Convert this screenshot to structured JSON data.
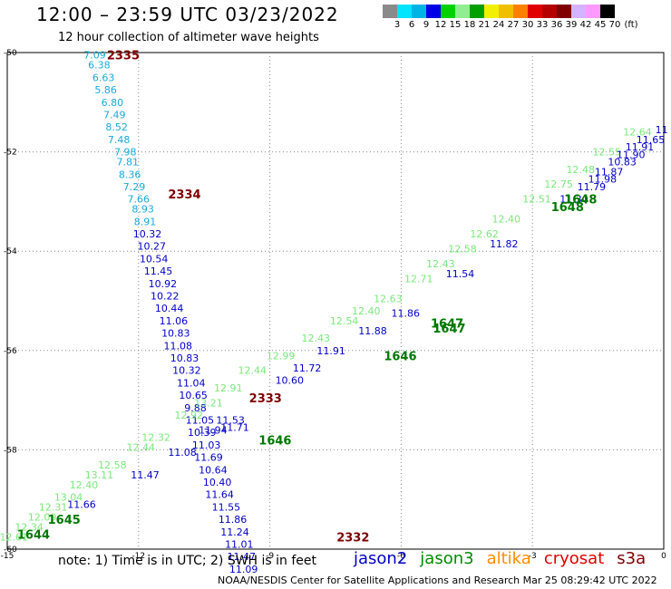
{
  "header": {
    "title": "12:00 – 23:59 UTC 03/23/2022",
    "subtitle": "12 hour collection of altimeter wave heights"
  },
  "legend": {
    "unit": "(ft)",
    "colors": [
      "#8a8a8a",
      "#00e5ff",
      "#00b4e6",
      "#0000e6",
      "#00d200",
      "#90ee90",
      "#00a000",
      "#f0f000",
      "#f0c000",
      "#ff8000",
      "#e00000",
      "#b40000",
      "#800000",
      "#d6b3ff",
      "#ff99ff",
      "#000000"
    ],
    "ticks": [
      "3",
      "6",
      "9",
      "12",
      "15",
      "18",
      "21",
      "24",
      "27",
      "30",
      "33",
      "36",
      "39",
      "42",
      "45",
      "70"
    ]
  },
  "map": {
    "lon_range": [
      -15,
      0
    ],
    "lat_range": [
      -60,
      -50
    ],
    "x_ticks": [
      "-15",
      "-12",
      "-9",
      "-6",
      "-3",
      "0"
    ],
    "y_ticks": [
      "-50",
      "-52",
      "-54",
      "-56",
      "-58",
      "-60"
    ]
  },
  "chart_data": {
    "type": "scatter",
    "xlabel": "",
    "ylabel": "",
    "xlim": [
      -15,
      0
    ],
    "ylim": [
      -60,
      -50
    ],
    "grid": true,
    "times": [
      {
        "label": "2335",
        "x": -12.35,
        "y": -50.05,
        "color": "#800000"
      },
      {
        "label": "2334",
        "x": -10.95,
        "y": -52.85,
        "color": "#800000"
      },
      {
        "label": "2333",
        "x": -9.1,
        "y": -56.95,
        "color": "#800000"
      },
      {
        "label": "2332",
        "x": -7.1,
        "y": -59.75,
        "color": "#800000"
      },
      {
        "label": "1648",
        "x": -1.9,
        "y": -52.95,
        "color": "#007800"
      },
      {
        "label": "1648",
        "x": -2.2,
        "y": -53.1,
        "color": "#007800"
      },
      {
        "label": "1647",
        "x": -4.95,
        "y": -55.45,
        "color": "#007800"
      },
      {
        "label": "1647",
        "x": -4.9,
        "y": -55.55,
        "color": "#007800"
      },
      {
        "label": "1646",
        "x": -6.02,
        "y": -56.1,
        "color": "#007800"
      },
      {
        "label": "1646",
        "x": -8.88,
        "y": -57.8,
        "color": "#007800"
      },
      {
        "label": "1645",
        "x": -13.7,
        "y": -59.4,
        "color": "#007800"
      },
      {
        "label": "1644",
        "x": -14.4,
        "y": -59.7,
        "color": "#007800"
      }
    ],
    "series": [
      {
        "name": "s3a",
        "color": "#1aa9d8",
        "points": [
          {
            "x": -13.0,
            "y": -50.05,
            "v": "7.09"
          },
          {
            "x": -12.9,
            "y": -50.25,
            "v": "6.38"
          },
          {
            "x": -12.8,
            "y": -50.5,
            "v": "6.63"
          },
          {
            "x": -12.75,
            "y": -50.75,
            "v": "5.86"
          },
          {
            "x": -12.6,
            "y": -51.0,
            "v": "6.80"
          },
          {
            "x": -12.55,
            "y": -51.25,
            "v": "7.49"
          },
          {
            "x": -12.5,
            "y": -51.5,
            "v": "8.52"
          },
          {
            "x": -12.45,
            "y": -51.75,
            "v": "7.48"
          },
          {
            "x": -12.3,
            "y": -52.0,
            "v": "7.98"
          },
          {
            "x": -12.25,
            "y": -52.2,
            "v": "7.81"
          },
          {
            "x": -12.2,
            "y": -52.45,
            "v": "8.36"
          },
          {
            "x": -12.1,
            "y": -52.7,
            "v": "7.29"
          },
          {
            "x": -12.0,
            "y": -52.95,
            "v": "7.66"
          },
          {
            "x": -11.9,
            "y": -53.15,
            "v": "8.93"
          },
          {
            "x": -11.85,
            "y": -53.4,
            "v": "8.91"
          }
        ]
      },
      {
        "name": "s3a",
        "color": "#0000c8",
        "points": [
          {
            "x": -11.8,
            "y": -53.65,
            "v": "10.32"
          },
          {
            "x": -11.7,
            "y": -53.9,
            "v": "10.27"
          },
          {
            "x": -11.65,
            "y": -54.15,
            "v": "10.54"
          },
          {
            "x": -11.55,
            "y": -54.4,
            "v": "11.45"
          },
          {
            "x": -11.45,
            "y": -54.65,
            "v": "10.92"
          },
          {
            "x": -11.4,
            "y": -54.9,
            "v": "10.22"
          },
          {
            "x": -11.3,
            "y": -55.15,
            "v": "10.44"
          },
          {
            "x": -11.2,
            "y": -55.4,
            "v": "11.06"
          },
          {
            "x": -11.15,
            "y": -55.65,
            "v": "10.83"
          },
          {
            "x": -11.1,
            "y": -55.9,
            "v": "11.08"
          },
          {
            "x": -10.95,
            "y": -56.15,
            "v": "10.83"
          },
          {
            "x": -10.9,
            "y": -56.4,
            "v": "10.32"
          },
          {
            "x": -10.8,
            "y": -56.65,
            "v": "11.04"
          },
          {
            "x": -10.75,
            "y": -56.9,
            "v": "10.65"
          },
          {
            "x": -10.7,
            "y": -57.15,
            "v": "9.88"
          },
          {
            "x": -10.6,
            "y": -57.4,
            "v": "11.05"
          },
          {
            "x": -10.55,
            "y": -57.65,
            "v": "10.39"
          },
          {
            "x": -10.45,
            "y": -57.9,
            "v": "11.03"
          },
          {
            "x": -10.4,
            "y": -58.15,
            "v": "11.69"
          },
          {
            "x": -9.8,
            "y": -57.55,
            "v": "11.71"
          },
          {
            "x": -10.3,
            "y": -58.4,
            "v": "10.64"
          },
          {
            "x": -10.2,
            "y": -58.65,
            "v": "10.40"
          },
          {
            "x": -10.15,
            "y": -58.9,
            "v": "11.64"
          },
          {
            "x": -10.0,
            "y": -59.15,
            "v": "11.55"
          },
          {
            "x": -9.85,
            "y": -59.4,
            "v": "11.86"
          },
          {
            "x": -9.8,
            "y": -59.65,
            "v": "11.24"
          },
          {
            "x": -9.7,
            "y": -59.9,
            "v": "11.01"
          },
          {
            "x": -9.65,
            "y": -60.15,
            "v": "11.47"
          },
          {
            "x": -9.6,
            "y": -60.4,
            "v": "11.09"
          }
        ]
      },
      {
        "name": "jason3",
        "color": "#7be87b",
        "points": [
          {
            "x": -14.85,
            "y": -59.75,
            "v": "12.61"
          },
          {
            "x": -14.5,
            "y": -59.55,
            "v": "12.34"
          },
          {
            "x": -14.2,
            "y": -59.35,
            "v": "12.09"
          },
          {
            "x": -13.95,
            "y": -59.15,
            "v": "12.31"
          },
          {
            "x": -13.6,
            "y": -58.95,
            "v": "13.04"
          },
          {
            "x": -13.25,
            "y": -58.7,
            "v": "12.40"
          },
          {
            "x": -12.9,
            "y": -58.5,
            "v": "13.11"
          },
          {
            "x": -12.6,
            "y": -58.3,
            "v": "12.58"
          },
          {
            "x": -11.95,
            "y": -57.95,
            "v": "12.44"
          },
          {
            "x": -11.6,
            "y": -57.75,
            "v": "12.32"
          },
          {
            "x": -10.85,
            "y": -57.3,
            "v": "12.92"
          },
          {
            "x": -10.4,
            "y": -57.05,
            "v": "13.21"
          },
          {
            "x": -9.95,
            "y": -56.75,
            "v": "12.91"
          },
          {
            "x": -9.4,
            "y": -56.4,
            "v": "12.44"
          },
          {
            "x": -8.75,
            "y": -56.1,
            "v": "12.99"
          },
          {
            "x": -7.95,
            "y": -55.75,
            "v": "12.43"
          },
          {
            "x": -7.3,
            "y": -55.4,
            "v": "12.54"
          },
          {
            "x": -6.8,
            "y": -55.2,
            "v": "12.40"
          },
          {
            "x": -6.3,
            "y": -54.95,
            "v": "12.63"
          },
          {
            "x": -5.6,
            "y": -54.55,
            "v": "12.71"
          },
          {
            "x": -5.1,
            "y": -54.25,
            "v": "12.43"
          },
          {
            "x": -4.6,
            "y": -53.95,
            "v": "12.58"
          },
          {
            "x": -4.1,
            "y": -53.65,
            "v": "12.62"
          },
          {
            "x": -3.6,
            "y": -53.35,
            "v": "12.40"
          },
          {
            "x": -2.9,
            "y": -52.95,
            "v": "12.51"
          },
          {
            "x": -2.4,
            "y": -52.65,
            "v": "12.75"
          },
          {
            "x": -1.9,
            "y": -52.35,
            "v": "12.48"
          },
          {
            "x": -1.3,
            "y": -52.0,
            "v": "12.55"
          },
          {
            "x": -0.6,
            "y": -51.6,
            "v": "12.64"
          }
        ]
      },
      {
        "name": "jason2",
        "color": "#0000c8",
        "points": [
          {
            "x": -13.3,
            "y": -59.1,
            "v": "11.66"
          },
          {
            "x": -11.85,
            "y": -58.5,
            "v": "11.47"
          },
          {
            "x": -11.0,
            "y": -58.05,
            "v": "11.08"
          },
          {
            "x": -10.3,
            "y": -57.6,
            "v": "11.94"
          },
          {
            "x": -9.9,
            "y": -57.4,
            "v": "11.53"
          },
          {
            "x": -8.55,
            "y": -56.6,
            "v": "10.60"
          },
          {
            "x": -8.15,
            "y": -56.35,
            "v": "11.72"
          },
          {
            "x": -7.6,
            "y": -56.0,
            "v": "11.91"
          },
          {
            "x": -6.65,
            "y": -55.6,
            "v": "11.88"
          },
          {
            "x": -5.9,
            "y": -55.25,
            "v": "11.86"
          },
          {
            "x": -4.65,
            "y": -54.45,
            "v": "11.54"
          },
          {
            "x": -3.65,
            "y": -53.85,
            "v": "11.82"
          },
          {
            "x": -2.05,
            "y": -52.95,
            "v": "11.30"
          },
          {
            "x": -1.65,
            "y": -52.7,
            "v": "11.79"
          },
          {
            "x": -1.4,
            "y": -52.55,
            "v": "11.98"
          },
          {
            "x": -1.25,
            "y": -52.4,
            "v": "11.87"
          },
          {
            "x": -0.95,
            "y": -52.2,
            "v": "10.83"
          },
          {
            "x": -0.75,
            "y": -52.05,
            "v": "11.90"
          },
          {
            "x": -0.55,
            "y": -51.9,
            "v": "11.91"
          },
          {
            "x": -0.3,
            "y": -51.75,
            "v": "11.65"
          },
          {
            "x": -0.05,
            "y": -51.55,
            "v": "11"
          }
        ]
      }
    ]
  },
  "footer": {
    "note": "note: 1) Time is in UTC; 2) SWH is in feet",
    "missions": [
      {
        "label": "jason2",
        "color": "#0000c8"
      },
      {
        "label": "jason3",
        "color": "#008c00"
      },
      {
        "label": "altika",
        "color": "#ff8c00"
      },
      {
        "label": "cryosat",
        "color": "#e00000"
      },
      {
        "label": "s3a",
        "color": "#800000"
      }
    ],
    "credit": "NOAA/NESDIS Center for Satellite Applications and Research    Mar 25 08:29:42 UTC 2022"
  }
}
